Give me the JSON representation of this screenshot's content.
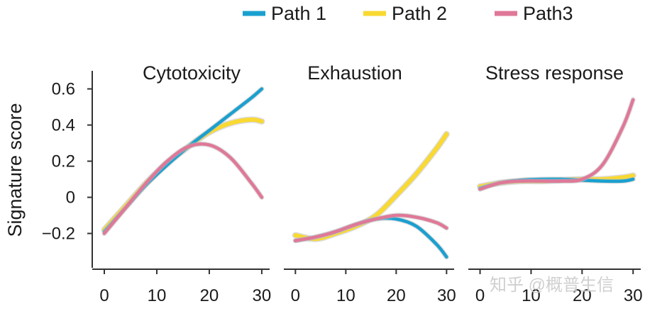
{
  "colors": {
    "path1": "#1aa0cf",
    "path2": "#f9d932",
    "path3": "#e07898",
    "axis": "#333333"
  },
  "watermark": "知乎 @概普生信",
  "chart_data": {
    "type": "line",
    "ylabel": "Signature score",
    "xlabel": "",
    "legend": [
      {
        "key": "path1",
        "label": "Path 1"
      },
      {
        "key": "path2",
        "label": "Path 2"
      },
      {
        "key": "path3",
        "label": "Path3"
      }
    ],
    "legend_position": "top-right",
    "shared_y_ticks": [
      {
        "value": 0.6,
        "label": "0.6"
      },
      {
        "value": 0.4,
        "label": "0.4"
      },
      {
        "value": 0.2,
        "label": "0.2"
      },
      {
        "value": 0,
        "label": "0"
      },
      {
        "value": -0.2,
        "label": "−0.2"
      }
    ],
    "ylim": [
      -0.39,
      0.7
    ],
    "xlim": [
      -2.3,
      31.5
    ],
    "x_ticks": [
      {
        "value": 0,
        "label": "0"
      },
      {
        "value": 10,
        "label": "10"
      },
      {
        "value": 20,
        "label": "20"
      },
      {
        "value": 30,
        "label": "30"
      }
    ],
    "panels": [
      {
        "title": "Cytotoxicity",
        "x": [
          0,
          4,
          8,
          12,
          16,
          20,
          24,
          28,
          30
        ],
        "series": [
          {
            "key": "path1",
            "name": "Path 1",
            "values": [
              -0.19,
              -0.06,
              0.07,
              0.18,
              0.28,
              0.37,
              0.46,
              0.55,
              0.6
            ]
          },
          {
            "key": "path2",
            "name": "Path 2",
            "values": [
              -0.18,
              -0.05,
              0.08,
              0.19,
              0.28,
              0.36,
              0.41,
              0.43,
              0.42
            ]
          },
          {
            "key": "path3",
            "name": "Path3",
            "values": [
              -0.2,
              -0.06,
              0.08,
              0.2,
              0.28,
              0.29,
              0.22,
              0.08,
              0.0
            ]
          }
        ]
      },
      {
        "title": "Exhaustion",
        "x": [
          0,
          4,
          8,
          12,
          16,
          20,
          24,
          28,
          30
        ],
        "series": [
          {
            "key": "path1",
            "name": "Path 1",
            "values": [
              -0.24,
              -0.22,
              -0.19,
              -0.15,
              -0.12,
              -0.12,
              -0.16,
              -0.26,
              -0.33
            ]
          },
          {
            "key": "path2",
            "name": "Path 2",
            "values": [
              -0.21,
              -0.23,
              -0.2,
              -0.16,
              -0.1,
              0.01,
              0.13,
              0.27,
              0.35
            ]
          },
          {
            "key": "path3",
            "name": "Path3",
            "values": [
              -0.24,
              -0.22,
              -0.19,
              -0.15,
              -0.12,
              -0.1,
              -0.11,
              -0.14,
              -0.17
            ]
          }
        ]
      },
      {
        "title": "Stress response",
        "x": [
          0,
          4,
          8,
          12,
          16,
          20,
          24,
          28,
          30
        ],
        "series": [
          {
            "key": "path1",
            "name": "Path 1",
            "values": [
              0.05,
              0.08,
              0.095,
              0.1,
              0.1,
              0.095,
              0.09,
              0.09,
              0.1
            ]
          },
          {
            "key": "path2",
            "name": "Path 2",
            "values": [
              0.06,
              0.08,
              0.09,
              0.09,
              0.095,
              0.1,
              0.1,
              0.11,
              0.12
            ]
          },
          {
            "key": "path3",
            "name": "Path3",
            "values": [
              0.045,
              0.08,
              0.09,
              0.09,
              0.09,
              0.1,
              0.18,
              0.39,
              0.54
            ]
          }
        ]
      }
    ]
  }
}
